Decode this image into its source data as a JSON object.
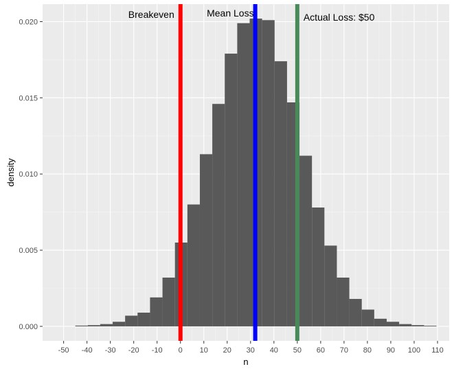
{
  "chart_data": {
    "type": "bar",
    "subtype": "histogram",
    "xlabel": "n",
    "ylabel": "density",
    "xlim": [
      -59,
      115
    ],
    "ylim": [
      -0.00095,
      0.02115
    ],
    "x_ticks": [
      -50,
      -40,
      -30,
      -20,
      -10,
      0,
      10,
      20,
      30,
      40,
      50,
      60,
      70,
      80,
      90,
      100,
      110
    ],
    "x_tick_labels": [
      "-50",
      "-40",
      "-30",
      "-20",
      "-10",
      "0",
      "10",
      "20",
      "30",
      "40",
      "50",
      "60",
      "70",
      "80",
      "90",
      "100",
      "110"
    ],
    "y_ticks": [
      0,
      0.005,
      0.01,
      0.015,
      0.02
    ],
    "y_tick_labels": [
      "0.000",
      "0.005",
      "0.010",
      "0.015",
      "0.020"
    ],
    "grid": true,
    "bin_width": 5.33,
    "bin_starts": [
      -45,
      -39.67,
      -34.34,
      -29.01,
      -23.68,
      -18.35,
      -13.02,
      -7.69,
      -2.36,
      2.97,
      8.3,
      13.63,
      18.96,
      24.29,
      29.62,
      34.95,
      40.28,
      45.61,
      50.94,
      56.27,
      61.6,
      66.93,
      72.26,
      77.59,
      82.92,
      88.25,
      93.58,
      98.91,
      104.24
    ],
    "values": [
      5e-05,
      8e-05,
      0.00015,
      0.0003,
      0.0007,
      0.0009,
      0.0019,
      0.0032,
      0.0055,
      0.008,
      0.0113,
      0.0146,
      0.0179,
      0.0199,
      0.0202,
      0.0201,
      0.0174,
      0.0147,
      0.0112,
      0.0078,
      0.0053,
      0.0032,
      0.0018,
      0.0011,
      0.0005,
      0.0003,
      0.00015,
      8e-05,
      4e-05
    ],
    "bar_color": "#595959",
    "vlines": [
      {
        "x": 0,
        "color": "#ff0000",
        "label": "Breakeven"
      },
      {
        "x": 32,
        "color": "#0000ff",
        "label": "Mean Loss"
      },
      {
        "x": 50,
        "color": "#4a8a5a",
        "label": "Actual Loss: $50"
      }
    ]
  }
}
